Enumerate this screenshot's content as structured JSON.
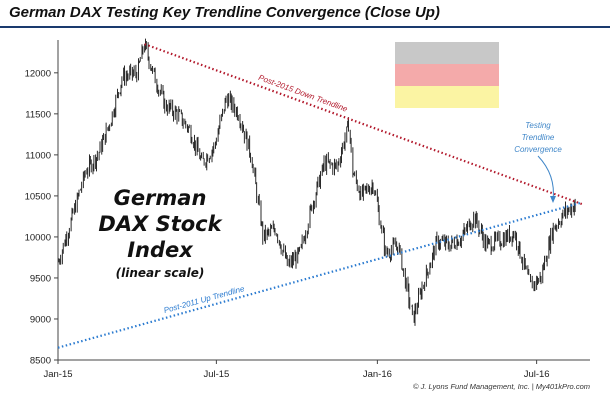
{
  "title": "German DAX Testing Key Trendline Convergence (Close Up)",
  "chart_data": {
    "type": "line",
    "title": "German DAX Testing Key Trendline Convergence (Close Up)",
    "xlabel": "",
    "ylabel": "",
    "ylim": [
      8500,
      12400
    ],
    "x_ticks": [
      "Jan-15",
      "Jul-15",
      "Jan-16",
      "Jul-16"
    ],
    "y_ticks": [
      8500,
      9000,
      9500,
      10000,
      10500,
      11000,
      11500,
      12000
    ],
    "grid": false,
    "center_label": [
      "German",
      "DAX Stock",
      "Index"
    ],
    "center_sublabel": "(linear scale)",
    "series": [
      {
        "name": "",
        "x": [
          "2015-01-02",
          "2015-01-15",
          "2015-02-02",
          "2015-02-16",
          "2015-03-02",
          "2015-03-16",
          "2015-04-02",
          "2015-04-10",
          "2015-04-20",
          "2015-05-04",
          "2015-05-18",
          "2015-06-01",
          "2015-06-15",
          "2015-06-29",
          "2015-07-13",
          "2015-07-27",
          "2015-08-10",
          "2015-08-24",
          "2015-09-07",
          "2015-09-21",
          "2015-10-05",
          "2015-10-19",
          "2015-11-02",
          "2015-11-16",
          "2015-11-30",
          "2015-12-04",
          "2015-12-14",
          "2015-12-28",
          "2016-01-11",
          "2016-01-25",
          "2016-02-11",
          "2016-02-25",
          "2016-03-10",
          "2016-03-24",
          "2016-04-07",
          "2016-04-21",
          "2016-05-05",
          "2016-05-19",
          "2016-06-06",
          "2016-06-24",
          "2016-07-06",
          "2016-07-20",
          "2016-08-03",
          "2016-08-15"
        ],
        "values": [
          9700,
          10150,
          10800,
          11000,
          11400,
          11950,
          12000,
          12350,
          12000,
          11600,
          11500,
          11300,
          10900,
          11100,
          11700,
          11500,
          11000,
          10000,
          10100,
          9650,
          9800,
          10400,
          10900,
          10850,
          11380,
          10800,
          10500,
          10650,
          9800,
          9900,
          9000,
          9500,
          9950,
          9900,
          10000,
          10250,
          9900,
          9950,
          10050,
          9400,
          9500,
          10100,
          10300,
          10400
        ]
      }
    ],
    "trendlines": [
      {
        "name": "Post-2015 Down Trendline",
        "from": [
          "2015-04-10",
          12350
        ],
        "to": [
          "2016-08-22",
          10400
        ],
        "color": "#b2182b"
      },
      {
        "name": "Post-2011 Up Trendline",
        "from": [
          "2015-01-01",
          8650
        ],
        "to": [
          "2016-08-22",
          10420
        ],
        "color": "#2b7bd0"
      }
    ],
    "annotation": "Testing Trendline Convergence",
    "flag_colors": [
      "#c8c8c8",
      "#f4aaaa",
      "#fbf4a3"
    ]
  },
  "credit": "© J. Lyons Fund Management, Inc. | My401kPro.com"
}
